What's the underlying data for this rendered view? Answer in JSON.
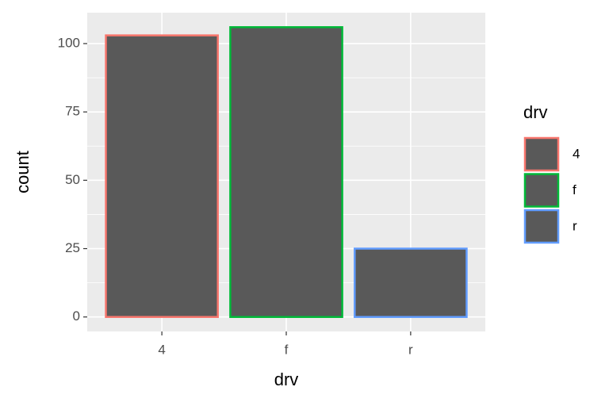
{
  "chart_data": {
    "type": "bar",
    "x_label": "drv",
    "y_label": "count",
    "legend_title": "drv",
    "categories": [
      "4",
      "f",
      "r"
    ],
    "values": [
      103,
      106,
      25
    ],
    "fill": "#595959",
    "colors": [
      "#F8766D",
      "#00BA38",
      "#619CFF"
    ],
    "ylim": [
      -5.3,
      111.3
    ],
    "yticks": [
      0,
      25,
      50,
      75,
      100
    ],
    "grid": true
  }
}
